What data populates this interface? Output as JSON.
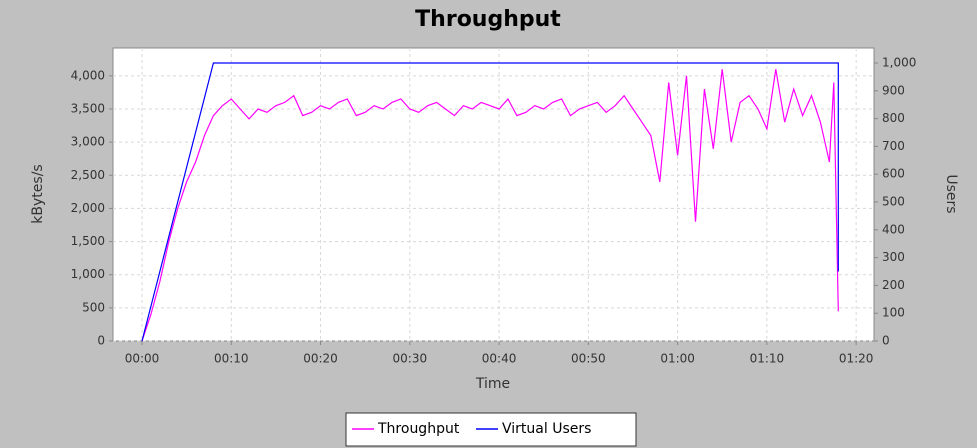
{
  "chart_data": {
    "type": "line",
    "title": "Throughput",
    "x_label": "Time",
    "y_label": "kBytes/s",
    "y2_label": "Users",
    "xlim": [
      -3.25,
      82.0
    ],
    "xticks": [
      {
        "value": 0,
        "label": "00:00"
      },
      {
        "value": 10,
        "label": "00:10"
      },
      {
        "value": 20,
        "label": "00:20"
      },
      {
        "value": 30,
        "label": "00:30"
      },
      {
        "value": 40,
        "label": "00:40"
      },
      {
        "value": 50,
        "label": "00:50"
      },
      {
        "value": 60,
        "label": "01:00"
      },
      {
        "value": 70,
        "label": "01:10"
      },
      {
        "value": 80,
        "label": "01:20"
      }
    ],
    "ylim": [
      0,
      4420
    ],
    "yticks": [
      0,
      500,
      {
        "value": 1000,
        "label": "1,000"
      },
      {
        "value": 1500,
        "label": "1,500"
      },
      {
        "value": 2000,
        "label": "2,000"
      },
      {
        "value": 2500,
        "label": "2,500"
      },
      {
        "value": 3000,
        "label": "3,000"
      },
      {
        "value": 3500,
        "label": "3,500"
      },
      {
        "value": 4000,
        "label": "4,000"
      }
    ],
    "y2lim": [
      0,
      1054
    ],
    "y2ticks": [
      0,
      100,
      200,
      300,
      400,
      500,
      600,
      700,
      800,
      900,
      {
        "value": 1000,
        "label": "1,000"
      }
    ],
    "grid": true,
    "legend": "bottom",
    "series": [
      {
        "name": "Throughput",
        "color": "#ff00ff",
        "x": [
          0,
          1,
          2,
          3,
          4,
          5,
          6,
          7,
          8,
          9,
          10,
          11,
          12,
          13,
          14,
          15,
          16,
          17,
          18,
          19,
          20,
          21,
          22,
          23,
          24,
          25,
          26,
          27,
          28,
          29,
          30,
          31,
          32,
          33,
          34,
          35,
          36,
          37,
          38,
          39,
          40,
          41,
          42,
          43,
          44,
          45,
          46,
          47,
          48,
          49,
          50,
          51,
          52,
          53,
          54,
          55,
          56,
          57,
          58,
          59,
          60,
          61,
          62,
          63,
          64,
          65,
          66,
          67,
          68,
          69,
          70,
          71,
          72,
          73,
          74,
          75,
          76,
          77,
          77.5,
          78
        ],
        "values": [
          0,
          400,
          900,
          1500,
          2000,
          2400,
          2700,
          3100,
          3400,
          3550,
          3650,
          3500,
          3350,
          3500,
          3450,
          3550,
          3600,
          3700,
          3400,
          3450,
          3550,
          3500,
          3600,
          3650,
          3400,
          3450,
          3550,
          3500,
          3600,
          3650,
          3500,
          3450,
          3550,
          3600,
          3500,
          3400,
          3550,
          3500,
          3600,
          3550,
          3500,
          3650,
          3400,
          3450,
          3550,
          3500,
          3600,
          3650,
          3400,
          3500,
          3550,
          3600,
          3450,
          3550,
          3700,
          3500,
          3300,
          3100,
          2400,
          3900,
          2800,
          4000,
          1800,
          3800,
          2900,
          4100,
          3000,
          3600,
          3700,
          3500,
          3200,
          4100,
          3300,
          3800,
          3400,
          3700,
          3300,
          2700,
          3900,
          450
        ]
      },
      {
        "name": "Virtual Users",
        "color": "#0000ff",
        "axis": "y2",
        "x": [
          0,
          8,
          78,
          78
        ],
        "values": [
          0,
          1000,
          1000,
          250
        ]
      }
    ]
  }
}
